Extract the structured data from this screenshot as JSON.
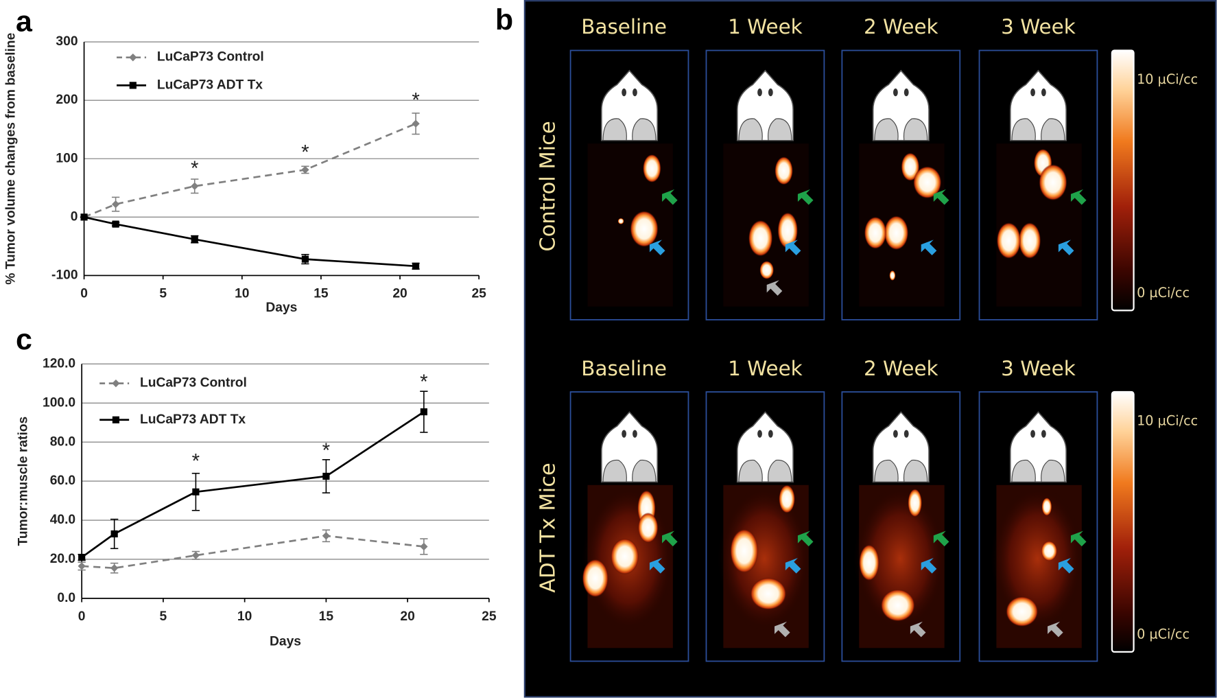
{
  "panel_labels": [
    "a",
    "b",
    "c"
  ],
  "chart_data": [
    {
      "type": "line",
      "xlabel": "Days",
      "ylabel": "% Tumor volume changes from baseline",
      "xlim": [
        0,
        25
      ],
      "xticks": [
        0,
        5,
        10,
        15,
        20,
        25
      ],
      "ylim": [
        -100,
        300
      ],
      "yticks": [
        -100,
        0,
        100,
        200,
        300
      ],
      "grid": true,
      "legend": "upper left",
      "series": [
        {
          "name": "LuCaP73 Control",
          "color": "#808080",
          "line_style": "dashed",
          "marker": "diamond",
          "x": [
            0,
            2,
            7,
            14,
            21
          ],
          "values": [
            0,
            22,
            53,
            81,
            160
          ],
          "errors": [
            0,
            12,
            12,
            6,
            18
          ]
        },
        {
          "name": "LuCaP73 ADT Tx",
          "color": "#000000",
          "line_style": "solid",
          "marker": "square",
          "x": [
            0,
            2,
            7,
            14,
            21
          ],
          "values": [
            0,
            -12,
            -38,
            -72,
            -84
          ],
          "errors": [
            0,
            3,
            6,
            8,
            5
          ]
        }
      ],
      "annotations": [
        {
          "text": "*",
          "x": 7,
          "y": 89
        },
        {
          "text": "*",
          "x": 14,
          "y": 117
        },
        {
          "text": "*",
          "x": 21,
          "y": 206
        }
      ]
    },
    {
      "type": "line",
      "xlabel": "Days",
      "ylabel": "Tumor:muscle ratios",
      "xlim": [
        0,
        25
      ],
      "xticks": [
        0,
        5,
        10,
        15,
        20,
        25
      ],
      "ylim": [
        0,
        120
      ],
      "yticks": [
        {
          "value": 0,
          "label": "0.0"
        },
        {
          "value": 20,
          "label": "20.0"
        },
        {
          "value": 40,
          "label": "40.0"
        },
        {
          "value": 60,
          "label": "60.0"
        },
        {
          "value": 80,
          "label": "80.0"
        },
        {
          "value": 100,
          "label": "100.0"
        },
        {
          "value": 120,
          "label": "120.0"
        }
      ],
      "grid": true,
      "legend": "upper left",
      "series": [
        {
          "name": "LuCaP73 Control",
          "color": "#808080",
          "line_style": "dashed",
          "marker": "diamond",
          "x": [
            0,
            2,
            7,
            15,
            21
          ],
          "values": [
            16.5,
            15.5,
            22,
            32,
            26.5
          ],
          "errors": [
            2,
            2.5,
            2,
            3,
            4
          ]
        },
        {
          "name": "LuCaP73 ADT Tx",
          "color": "#000000",
          "line_style": "solid",
          "marker": "square",
          "x": [
            0,
            2,
            7,
            15,
            21
          ],
          "values": [
            21,
            33,
            54.5,
            62.5,
            95.5
          ],
          "errors": [
            1.5,
            7.5,
            9.5,
            8.5,
            10.5
          ]
        }
      ],
      "annotations": [
        {
          "text": "*",
          "x": 7,
          "y": 72
        },
        {
          "text": "*",
          "x": 15,
          "y": 77.5
        },
        {
          "text": "*",
          "x": 21,
          "y": 112.5
        }
      ]
    }
  ],
  "pet_panel": {
    "rows": [
      {
        "label": "Control Mice",
        "columns": [
          "Baseline",
          "1 Week",
          "2 Week",
          "3 Week"
        ],
        "scale_max": "10 µCi/cc",
        "scale_min": "0 µCi/cc"
      },
      {
        "label": "ADT  Tx  Mice",
        "columns": [
          "Baseline",
          "1 Week",
          "2 Week",
          "3 Week"
        ],
        "scale_max": "10 µCi/cc",
        "scale_min": "0 µCi/cc"
      }
    ]
  }
}
